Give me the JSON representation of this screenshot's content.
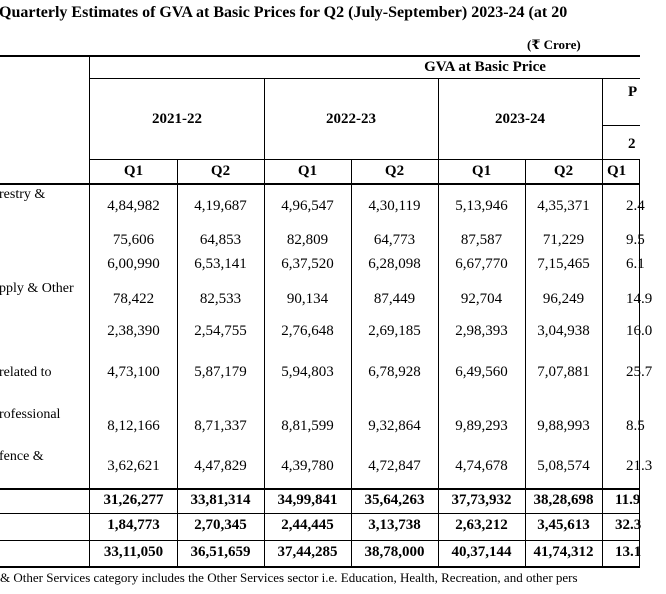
{
  "title": "Quarterly Estimates of GVA at Basic Prices for Q2 (July-September) 2023-24 (at 20",
  "unit": "(₹ Crore)",
  "group_header": "GVA at Basic Price",
  "years": [
    "2021-22",
    "2022-23",
    "2023-24"
  ],
  "pct_header_partial": "P",
  "pct_year_partial": "2",
  "quarters": [
    "Q1",
    "Q2",
    "Q1",
    "Q2",
    "Q1",
    "Q2",
    "Q1"
  ],
  "rows": [
    {
      "label": "restry &",
      "values": [
        "4,84,982",
        "4,19,687",
        "4,96,547",
        "4,30,119",
        "5,13,946",
        "4,35,371",
        "2.4"
      ]
    },
    {
      "label": "",
      "values": [
        "75,606",
        "64,853",
        "82,809",
        "64,773",
        "87,587",
        "71,229",
        "9.5"
      ]
    },
    {
      "label": "",
      "values": [
        "6,00,990",
        "6,53,141",
        "6,37,520",
        "6,28,098",
        "6,67,770",
        "7,15,465",
        "6.1"
      ]
    },
    {
      "label": "pply & Other",
      "values": [
        "78,422",
        "82,533",
        "90,134",
        "87,449",
        "92,704",
        "96,249",
        "14.9"
      ]
    },
    {
      "label": "",
      "values": [
        "2,38,390",
        "2,54,755",
        "2,76,648",
        "2,69,185",
        "2,98,393",
        "3,04,938",
        "16.0"
      ]
    },
    {
      "label": "related to",
      "values": [
        "4,73,100",
        "5,87,179",
        "5,94,803",
        "6,78,928",
        "6,49,560",
        "7,07,881",
        "25.7"
      ]
    },
    {
      "label": "rofessional",
      "values": [
        "8,12,166",
        "8,71,337",
        "8,81,599",
        "9,32,864",
        "9,89,293",
        "9,88,993",
        "8.5"
      ]
    },
    {
      "label": "fence &",
      "values": [
        "3,62,621",
        "4,47,829",
        "4,39,780",
        "4,72,847",
        "4,74,678",
        "5,08,574",
        "21.3"
      ]
    }
  ],
  "totals": [
    {
      "values": [
        "31,26,277",
        "33,81,314",
        "34,99,841",
        "35,64,263",
        "37,73,932",
        "38,28,698",
        "11.9"
      ]
    },
    {
      "values": [
        "1,84,773",
        "2,70,345",
        "2,44,445",
        "3,13,738",
        "2,63,212",
        "3,45,613",
        "32.3"
      ]
    },
    {
      "values": [
        "33,11,050",
        "36,51,659",
        "37,44,285",
        "38,78,000",
        "40,37,144",
        "41,74,312",
        "13.1"
      ]
    }
  ],
  "footnote": "& Other Services category includes the Other Services sector i.e. Education, Health, Recreation, and other pers"
}
